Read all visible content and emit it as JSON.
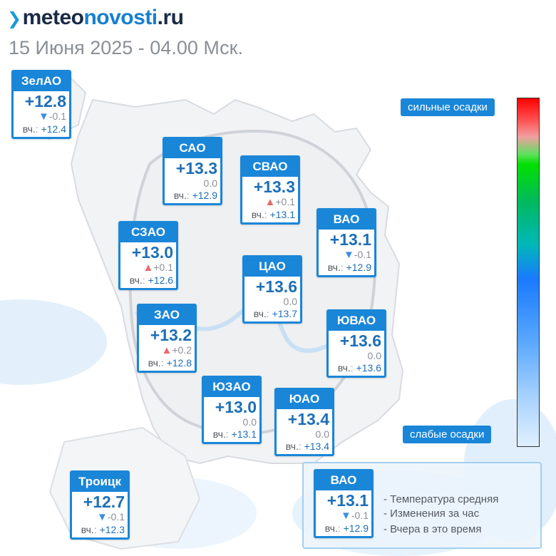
{
  "header": {
    "logo_part1": "meteo",
    "logo_part2": "novosti",
    "logo_part3": ".ru",
    "datetime": "15 Июня 2025 - 04.00 Мск."
  },
  "yesterday_label": "вч.",
  "yesterday_dots": ":",
  "districts": [
    {
      "name": "ЗелАО",
      "temp": "+12.8",
      "change": "-0.1",
      "trend": "down",
      "yesterday": "+12.4"
    },
    {
      "name": "САО",
      "temp": "+13.3",
      "change": "0.0",
      "trend": "none",
      "yesterday": "+12.9"
    },
    {
      "name": "СВАО",
      "temp": "+13.3",
      "change": "+0.1",
      "trend": "up",
      "yesterday": "+13.1"
    },
    {
      "name": "ВАО",
      "temp": "+13.1",
      "change": "-0.1",
      "trend": "down",
      "yesterday": "+12.9"
    },
    {
      "name": "СЗАО",
      "temp": "+13.0",
      "change": "+0.1",
      "trend": "up",
      "yesterday": "+12.6"
    },
    {
      "name": "ЦАО",
      "temp": "+13.6",
      "change": "0.0",
      "trend": "none",
      "yesterday": "+13.7"
    },
    {
      "name": "ЗАО",
      "temp": "+13.2",
      "change": "+0.2",
      "trend": "up",
      "yesterday": "+12.8"
    },
    {
      "name": "ЮВАО",
      "temp": "+13.6",
      "change": "0.0",
      "trend": "none",
      "yesterday": "+13.6"
    },
    {
      "name": "ЮЗАО",
      "temp": "+13.0",
      "change": "0.0",
      "trend": "none",
      "yesterday": "+13.1"
    },
    {
      "name": "ЮАО",
      "temp": "+13.4",
      "change": "0.0",
      "trend": "none",
      "yesterday": "+13.4"
    },
    {
      "name": "Троицк",
      "temp": "+12.7",
      "change": "-0.1",
      "trend": "down",
      "yesterday": "+12.3"
    }
  ],
  "precip_scale": {
    "top_label": "сильные осадки",
    "bottom_label": "слабые осадки"
  },
  "legend": {
    "example": {
      "name": "ВАО",
      "temp": "+13.1",
      "change": "-0.1",
      "trend": "down",
      "yesterday": "+12.9"
    },
    "line_avg": "- Температура средняя",
    "line_change": "- Изменения за час",
    "line_yesterday": "- Вчера в это время"
  },
  "colors": {
    "accent": "#1a86d8",
    "temp_text": "#1d6fb8",
    "trend_up": "#e86a6a",
    "trend_down": "#3a8fe0"
  }
}
